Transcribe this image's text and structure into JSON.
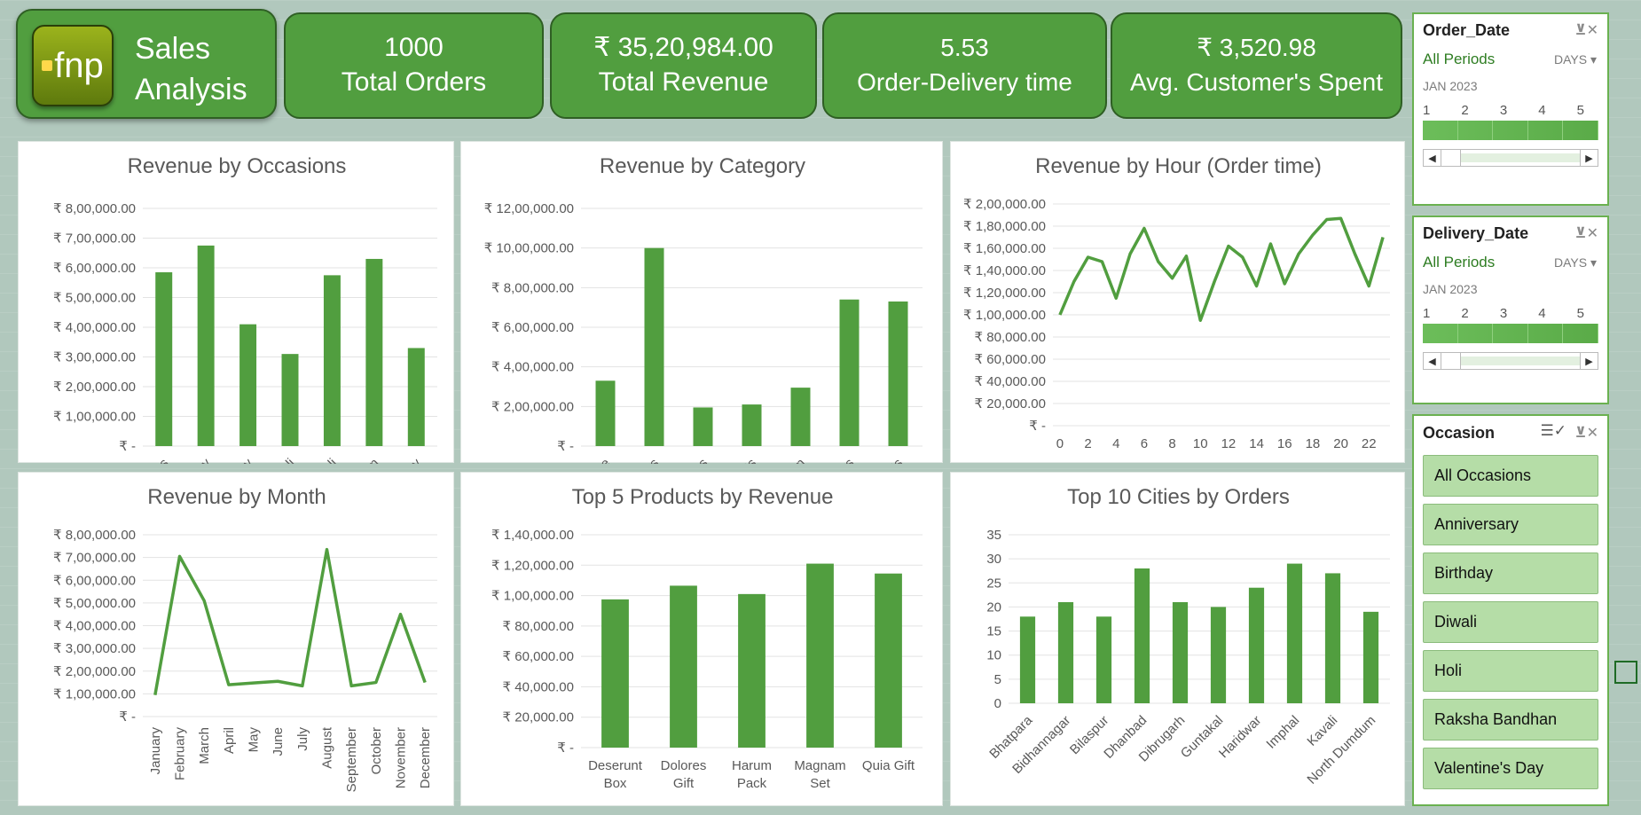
{
  "brand": {
    "logo_text": "fnp",
    "title_line1": "Sales",
    "title_line2": "Analysis"
  },
  "kpis": [
    {
      "value": "1000",
      "label": "Total Orders"
    },
    {
      "value": "₹  35,20,984.00",
      "label": "Total Revenue"
    },
    {
      "value": "5.53",
      "label": "Order-Delivery time"
    },
    {
      "value": "₹ 3,520.98",
      "label": "Avg. Customer's Spent"
    }
  ],
  "slicers": {
    "order_date": {
      "title": "Order_Date",
      "period": "All Periods",
      "unit": "DAYS",
      "month": "JAN 2023",
      "days": [
        "1",
        "2",
        "3",
        "4",
        "5"
      ]
    },
    "delivery_date": {
      "title": "Delivery_Date",
      "period": "All Periods",
      "unit": "DAYS",
      "month": "JAN 2023",
      "days": [
        "1",
        "2",
        "3",
        "4",
        "5"
      ]
    },
    "occasion": {
      "title": "Occasion",
      "items": [
        "All Occasions",
        "Anniversary",
        "Birthday",
        "Diwali",
        "Holi",
        "Raksha Bandhan",
        "Valentine's Day"
      ]
    }
  },
  "colors": {
    "accent": "#519e3f",
    "bar": "#519e3f",
    "slicer_item": "#b5dda7"
  },
  "chart_data": [
    {
      "type": "bar",
      "title": "Revenue by Occasions",
      "categories": [
        "All Occasions",
        "Anniversary",
        "Birthday",
        "Diwali",
        "Holi",
        "Raksha Bandhan",
        "Valentine's Day"
      ],
      "values": [
        585000,
        675000,
        410000,
        310000,
        575000,
        630000,
        330000
      ],
      "ylim": [
        0,
        800000
      ],
      "yticks": [
        "₹ -",
        "₹ 1,00,000.00",
        "₹ 2,00,000.00",
        "₹ 3,00,000.00",
        "₹ 4,00,000.00",
        "₹ 5,00,000.00",
        "₹ 6,00,000.00",
        "₹ 7,00,000.00",
        "₹ 8,00,000.00"
      ]
    },
    {
      "type": "bar",
      "title": "Revenue by Category",
      "categories": [
        "Cake",
        "Colors",
        "Mugs",
        "Plants",
        "Raksha Bandhan",
        "Soft Toys",
        "Sweets"
      ],
      "values": [
        330000,
        1000000,
        195000,
        210000,
        295000,
        740000,
        730000
      ],
      "ylim": [
        0,
        1200000
      ],
      "yticks": [
        "₹ -",
        "₹ 2,00,000.00",
        "₹ 4,00,000.00",
        "₹ 6,00,000.00",
        "₹ 8,00,000.00",
        "₹ 10,00,000.00",
        "₹ 12,00,000.00"
      ]
    },
    {
      "type": "line",
      "title": "Revenue by Hour (Order time)",
      "x": [
        0,
        1,
        2,
        3,
        4,
        5,
        6,
        7,
        8,
        9,
        10,
        11,
        12,
        13,
        14,
        15,
        16,
        17,
        18,
        19,
        20,
        21,
        22,
        23
      ],
      "values": [
        100000,
        130000,
        152000,
        148000,
        115000,
        155000,
        178000,
        148000,
        133000,
        153000,
        95000,
        130000,
        162000,
        152000,
        126000,
        164000,
        128000,
        155000,
        172000,
        186000,
        187000,
        155000,
        126000,
        170000
      ],
      "ylim": [
        0,
        200000
      ],
      "xticks": [
        "0",
        "2",
        "4",
        "6",
        "8",
        "10",
        "12",
        "14",
        "16",
        "18",
        "20",
        "22"
      ],
      "yticks": [
        "₹ -",
        "₹ 20,000.00",
        "₹ 40,000.00",
        "₹ 60,000.00",
        "₹ 80,000.00",
        "₹ 1,00,000.00",
        "₹ 1,20,000.00",
        "₹ 1,40,000.00",
        "₹ 1,60,000.00",
        "₹ 1,80,000.00",
        "₹ 2,00,000.00"
      ]
    },
    {
      "type": "line",
      "title": "Revenue by Month",
      "categories": [
        "January",
        "February",
        "March",
        "April",
        "May",
        "June",
        "July",
        "August",
        "September",
        "October",
        "November",
        "December"
      ],
      "values": [
        95000,
        705000,
        510000,
        140000,
        148000,
        155000,
        135000,
        735000,
        135000,
        150000,
        450000,
        150000
      ],
      "ylim": [
        0,
        800000
      ],
      "yticks": [
        "₹ -",
        "₹ 1,00,000.00",
        "₹ 2,00,000.00",
        "₹ 3,00,000.00",
        "₹ 4,00,000.00",
        "₹ 5,00,000.00",
        "₹ 6,00,000.00",
        "₹ 7,00,000.00",
        "₹ 8,00,000.00"
      ]
    },
    {
      "type": "bar",
      "title": "Top 5 Products by Revenue",
      "categories": [
        [
          "Deserunt",
          "Box"
        ],
        [
          "Dolores",
          "Gift"
        ],
        [
          "Harum",
          "Pack"
        ],
        [
          "Magnam",
          "Set"
        ],
        [
          "Quia Gift"
        ]
      ],
      "values": [
        97500,
        106500,
        101000,
        121000,
        114500
      ],
      "ylim": [
        0,
        140000
      ],
      "yticks": [
        "₹ -",
        "₹ 20,000.00",
        "₹ 40,000.00",
        "₹ 60,000.00",
        "₹ 80,000.00",
        "₹ 1,00,000.00",
        "₹ 1,20,000.00",
        "₹ 1,40,000.00"
      ]
    },
    {
      "type": "bar",
      "title": "Top 10 Cities by Orders",
      "categories": [
        "Bhatpara",
        "Bidhannagar",
        "Bilaspur",
        "Dhanbad",
        "Dibrugarh",
        "Guntakal",
        "Haridwar",
        "Imphal",
        "Kavali",
        "North Dumdum"
      ],
      "values": [
        18,
        21,
        18,
        28,
        21,
        20,
        24,
        29,
        27,
        19
      ],
      "ylim": [
        0,
        35
      ],
      "yticks": [
        "0",
        "5",
        "10",
        "15",
        "20",
        "25",
        "30",
        "35"
      ]
    }
  ]
}
